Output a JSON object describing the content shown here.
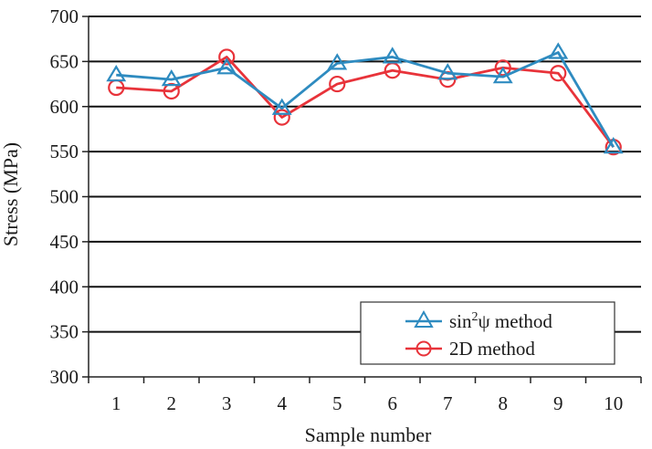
{
  "chart_data": {
    "type": "line",
    "x": [
      1,
      2,
      3,
      4,
      5,
      6,
      7,
      8,
      9,
      10
    ],
    "x_tick_labels": [
      "1",
      "2",
      "3",
      "4",
      "5",
      "6",
      "7",
      "8",
      "9",
      "10"
    ],
    "xlabel": "Sample number",
    "ylabel": "Stress (MPa)",
    "ylim": [
      300,
      700
    ],
    "y_ticks": [
      300,
      350,
      400,
      450,
      500,
      550,
      600,
      650,
      700
    ],
    "grid": "horizontal",
    "legend_position": "bottom-right",
    "series": [
      {
        "name": "sin²ψ method",
        "legend_base": "sin",
        "legend_sup": "2",
        "legend_rest": "ψ method",
        "marker": "triangle",
        "color": "#2e8bc0",
        "values": [
          635,
          630,
          643,
          598,
          648,
          655,
          637,
          633,
          660,
          555
        ]
      },
      {
        "name": "2D method",
        "legend_base": "2D method",
        "marker": "circle",
        "color": "#e8333a",
        "values": [
          621,
          617,
          655,
          588,
          625,
          640,
          630,
          643,
          637,
          555
        ]
      }
    ]
  }
}
